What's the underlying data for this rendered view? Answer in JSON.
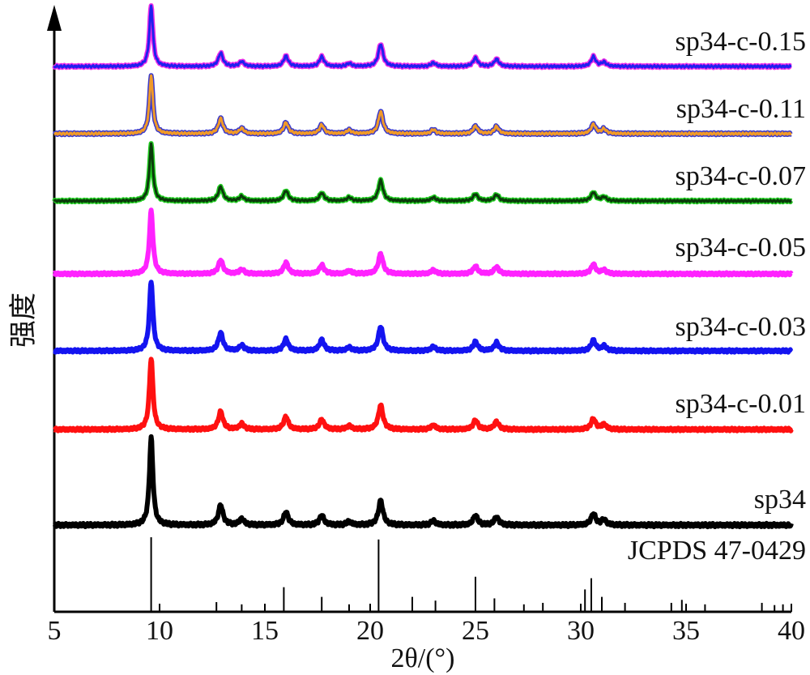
{
  "chart_data": {
    "type": "line",
    "title": "",
    "xlabel": "2θ/(°)",
    "ylabel": "强度",
    "xlim": [
      5,
      40
    ],
    "x_ticks": [
      5,
      10,
      15,
      20,
      25,
      30,
      35,
      40
    ],
    "grid": false,
    "legend": "labels at right end of each trace",
    "peaks_2theta": [
      9.6,
      12.9,
      13.9,
      16.0,
      17.7,
      19.0,
      20.5,
      23.0,
      25.0,
      26.0,
      30.6,
      31.1
    ],
    "series": [
      {
        "name": "sp34-c-0.15",
        "color": "#2020ee",
        "edge_color": "#ee2ee8",
        "relative_intensity": [
          1.0,
          0.22,
          0.08,
          0.17,
          0.16,
          0.05,
          0.37,
          0.06,
          0.14,
          0.12,
          0.16,
          0.07
        ]
      },
      {
        "name": "sp34-c-0.11",
        "color": "#f09a28",
        "edge_color": "#3a3acc",
        "relative_intensity": [
          1.0,
          0.26,
          0.09,
          0.19,
          0.15,
          0.06,
          0.38,
          0.07,
          0.13,
          0.12,
          0.16,
          0.08
        ]
      },
      {
        "name": "sp34-c-0.07",
        "color": "#0b3b0b",
        "edge_color": "#22cc22",
        "relative_intensity": [
          1.0,
          0.25,
          0.08,
          0.18,
          0.14,
          0.06,
          0.36,
          0.06,
          0.12,
          0.11,
          0.15,
          0.07
        ]
      },
      {
        "name": "sp34-c-0.05",
        "color": "#ff22ff",
        "edge_color": "#ff22ff",
        "relative_intensity": [
          1.0,
          0.22,
          0.07,
          0.18,
          0.14,
          0.05,
          0.32,
          0.06,
          0.12,
          0.11,
          0.15,
          0.06
        ]
      },
      {
        "name": "sp34-c-0.03",
        "color": "#1414f0",
        "edge_color": "#1414f0",
        "relative_intensity": [
          1.0,
          0.26,
          0.08,
          0.17,
          0.16,
          0.05,
          0.35,
          0.06,
          0.13,
          0.12,
          0.15,
          0.07
        ]
      },
      {
        "name": "sp34-c-0.01",
        "color": "#ff1010",
        "edge_color": "#ff1010",
        "relative_intensity": [
          1.0,
          0.25,
          0.08,
          0.18,
          0.14,
          0.05,
          0.34,
          0.06,
          0.13,
          0.11,
          0.15,
          0.07
        ]
      },
      {
        "name": "sp34",
        "color": "#000000",
        "edge_color": "#000000",
        "relative_intensity": [
          1.0,
          0.23,
          0.07,
          0.15,
          0.11,
          0.04,
          0.28,
          0.05,
          0.11,
          0.09,
          0.13,
          0.06
        ]
      }
    ],
    "reference": {
      "name": "JCPDS 47-0429",
      "lines": [
        {
          "x": 9.6,
          "h": 1.0
        },
        {
          "x": 12.7,
          "h": 0.13
        },
        {
          "x": 13.9,
          "h": 0.1
        },
        {
          "x": 15.9,
          "h": 0.33
        },
        {
          "x": 17.7,
          "h": 0.2
        },
        {
          "x": 19.0,
          "h": 0.1
        },
        {
          "x": 20.4,
          "h": 0.97
        },
        {
          "x": 22.0,
          "h": 0.2
        },
        {
          "x": 23.1,
          "h": 0.15
        },
        {
          "x": 25.0,
          "h": 0.47
        },
        {
          "x": 25.9,
          "h": 0.18
        },
        {
          "x": 27.3,
          "h": 0.1
        },
        {
          "x": 28.2,
          "h": 0.12
        },
        {
          "x": 30.2,
          "h": 0.3
        },
        {
          "x": 30.5,
          "h": 0.45
        },
        {
          "x": 31.0,
          "h": 0.2
        },
        {
          "x": 32.1,
          "h": 0.12
        },
        {
          "x": 34.3,
          "h": 0.12
        },
        {
          "x": 34.8,
          "h": 0.16
        },
        {
          "x": 35.9,
          "h": 0.1
        },
        {
          "x": 38.6,
          "h": 0.12
        },
        {
          "x": 39.2,
          "h": 0.09
        },
        {
          "x": 39.6,
          "h": 0.1
        }
      ]
    }
  }
}
